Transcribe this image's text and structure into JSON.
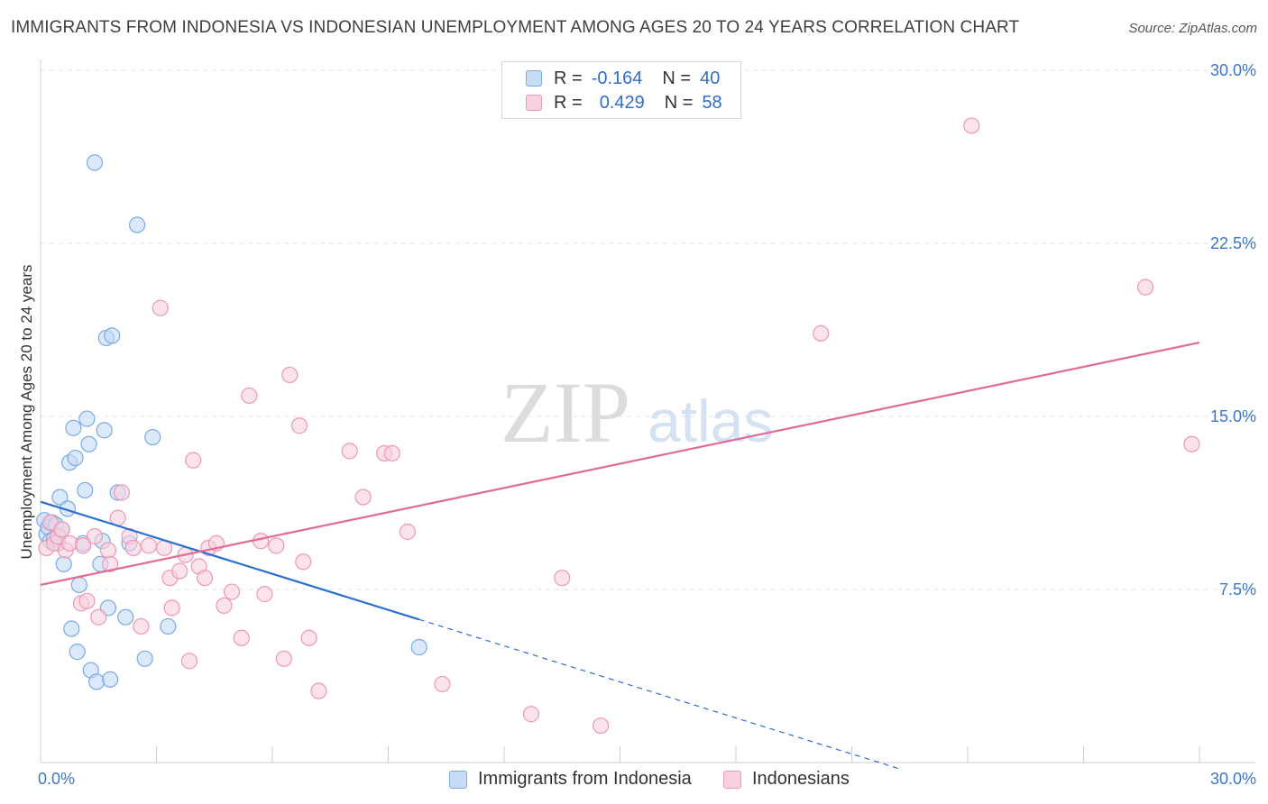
{
  "title": "IMMIGRANTS FROM INDONESIA VS INDONESIAN UNEMPLOYMENT AMONG AGES 20 TO 24 YEARS CORRELATION CHART",
  "source": "Source: ZipAtlas.com",
  "watermark": {
    "zip": "ZIP",
    "atlas": "atlas"
  },
  "legend_top": [
    {
      "r_label": "R =",
      "r_value": "-0.164",
      "n_label": "N =",
      "n_value": "40",
      "color": "#a9c7f0"
    },
    {
      "r_label": "R =",
      "r_value": "0.429",
      "n_label": "N =",
      "n_value": "58",
      "color": "#f4b6c8"
    }
  ],
  "legend_bottom": [
    {
      "label": "Immigrants from Indonesia",
      "color": "#a9c7f0"
    },
    {
      "label": "Indonesians",
      "color": "#f4b6c8"
    }
  ],
  "chart_data": {
    "type": "scatter",
    "title": "IMMIGRANTS FROM INDONESIA VS INDONESIAN UNEMPLOYMENT AMONG AGES 20 TO 24 YEARS CORRELATION CHART",
    "xlabel": "",
    "ylabel": "Unemployment Among Ages 20 to 24 years",
    "xlim": [
      0,
      30
    ],
    "ylim": [
      0,
      30
    ],
    "x_tick_labels": [
      {
        "value": 0,
        "label": "0.0%"
      },
      {
        "value": 30,
        "label": "30.0%"
      }
    ],
    "y_tick_labels": [
      {
        "value": 7.5,
        "label": "7.5%"
      },
      {
        "value": 15,
        "label": "15.0%"
      },
      {
        "value": 22.5,
        "label": "22.5%"
      },
      {
        "value": 30,
        "label": "30.0%"
      }
    ],
    "series": [
      {
        "name": "Immigrants from Indonesia",
        "color": "#7aaae6",
        "fill": "#c5dbf6",
        "points": [
          [
            0.1,
            10.5
          ],
          [
            0.15,
            9.9
          ],
          [
            0.2,
            10.2
          ],
          [
            0.25,
            9.6
          ],
          [
            0.3,
            10.4
          ],
          [
            0.35,
            9.7
          ],
          [
            0.4,
            10.3
          ],
          [
            0.45,
            9.5
          ],
          [
            0.5,
            11.5
          ],
          [
            0.55,
            10.1
          ],
          [
            0.6,
            8.6
          ],
          [
            0.7,
            11.0
          ],
          [
            0.75,
            13.0
          ],
          [
            0.8,
            5.8
          ],
          [
            0.85,
            14.5
          ],
          [
            0.9,
            13.2
          ],
          [
            0.95,
            4.8
          ],
          [
            1.0,
            7.7
          ],
          [
            1.1,
            9.5
          ],
          [
            1.15,
            11.8
          ],
          [
            1.2,
            14.9
          ],
          [
            1.25,
            13.8
          ],
          [
            1.3,
            4.0
          ],
          [
            1.4,
            26.0
          ],
          [
            1.45,
            3.5
          ],
          [
            1.55,
            8.6
          ],
          [
            1.6,
            9.6
          ],
          [
            1.65,
            14.4
          ],
          [
            1.7,
            18.4
          ],
          [
            1.75,
            6.7
          ],
          [
            1.8,
            3.6
          ],
          [
            1.85,
            18.5
          ],
          [
            2.0,
            11.7
          ],
          [
            2.2,
            6.3
          ],
          [
            2.3,
            9.5
          ],
          [
            2.5,
            23.3
          ],
          [
            2.7,
            4.5
          ],
          [
            2.9,
            14.1
          ],
          [
            3.3,
            5.9
          ],
          [
            9.8,
            5.0
          ]
        ]
      },
      {
        "name": "Indonesians",
        "color": "#ef97b4",
        "fill": "#f9d0dd",
        "points": [
          [
            0.15,
            9.3
          ],
          [
            0.25,
            10.4
          ],
          [
            0.35,
            9.5
          ],
          [
            0.45,
            9.8
          ],
          [
            0.55,
            10.1
          ],
          [
            0.65,
            9.2
          ],
          [
            0.75,
            9.5
          ],
          [
            1.1,
            9.4
          ],
          [
            1.05,
            6.9
          ],
          [
            1.2,
            7.0
          ],
          [
            1.4,
            9.8
          ],
          [
            1.5,
            6.3
          ],
          [
            1.75,
            9.2
          ],
          [
            1.8,
            8.6
          ],
          [
            2.0,
            10.6
          ],
          [
            2.1,
            11.7
          ],
          [
            2.3,
            9.8
          ],
          [
            2.4,
            9.3
          ],
          [
            2.6,
            5.9
          ],
          [
            2.8,
            9.4
          ],
          [
            3.1,
            19.7
          ],
          [
            3.2,
            9.3
          ],
          [
            3.35,
            8.0
          ],
          [
            3.4,
            6.7
          ],
          [
            3.6,
            8.3
          ],
          [
            3.75,
            9.0
          ],
          [
            3.85,
            4.4
          ],
          [
            3.95,
            13.1
          ],
          [
            4.1,
            8.5
          ],
          [
            4.25,
            8.0
          ],
          [
            4.35,
            9.3
          ],
          [
            4.55,
            9.5
          ],
          [
            4.75,
            6.8
          ],
          [
            4.95,
            7.4
          ],
          [
            5.2,
            5.4
          ],
          [
            5.4,
            15.9
          ],
          [
            5.7,
            9.6
          ],
          [
            5.8,
            7.3
          ],
          [
            6.1,
            9.4
          ],
          [
            6.3,
            4.5
          ],
          [
            6.45,
            16.8
          ],
          [
            6.7,
            14.6
          ],
          [
            6.8,
            8.7
          ],
          [
            6.95,
            5.4
          ],
          [
            7.2,
            3.1
          ],
          [
            8.0,
            13.5
          ],
          [
            8.35,
            11.5
          ],
          [
            8.9,
            13.4
          ],
          [
            9.1,
            13.4
          ],
          [
            9.5,
            10.0
          ],
          [
            10.4,
            3.4
          ],
          [
            12.7,
            2.1
          ],
          [
            13.5,
            8.0
          ],
          [
            14.5,
            1.6
          ],
          [
            20.2,
            18.6
          ],
          [
            24.1,
            27.6
          ],
          [
            28.6,
            20.6
          ],
          [
            29.8,
            13.8
          ]
        ]
      }
    ],
    "trend_lines": [
      {
        "series": "Immigrants from Indonesia",
        "x_start": 0,
        "y_start": 11.3,
        "x_end": 9.8,
        "y_end": 6.2,
        "dashed_to_x": 22.2,
        "color": "#2b6fcf"
      },
      {
        "series": "Indonesians",
        "x_start": 0,
        "y_start": 7.7,
        "x_end": 30,
        "y_end": 18.2,
        "color": "#e26b96"
      }
    ]
  }
}
